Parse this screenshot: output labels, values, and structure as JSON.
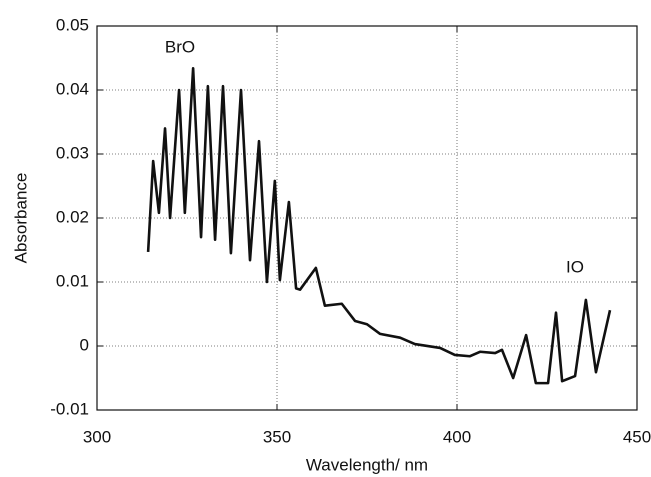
{
  "chart_data": {
    "type": "line",
    "x_label": "Wavelength/ nm",
    "y_label": "Absorbance",
    "annotations": [
      "BrO",
      "IO"
    ],
    "xlim": [
      300,
      450
    ],
    "xticks": [
      300,
      350,
      400,
      450
    ],
    "ylim": [
      -0.01,
      0.05
    ],
    "yticks": [
      -0.01,
      0,
      0.01,
      0.02,
      0.03,
      0.04,
      0.05
    ],
    "grid": true,
    "series": [
      {
        "name": "Absorbance",
        "color": "#111111",
        "x": [
          314.2,
          315.6,
          317.2,
          318.9,
          320.3,
          322.8,
          324.4,
          326.7,
          328.9,
          330.8,
          332.8,
          335.0,
          337.2,
          340.0,
          342.5,
          345.0,
          347.2,
          349.4,
          350.8,
          353.3,
          355.3,
          356.4,
          360.8,
          363.3,
          368.0,
          371.7,
          375.0,
          378.6,
          384.2,
          388.3,
          395.3,
          399.4,
          403.6,
          406.4,
          410.6,
          412.5,
          415.6,
          419.2,
          421.9,
          425.3,
          427.5,
          429.2,
          432.8,
          435.8,
          438.6,
          442.5
        ],
        "values": [
          0.0147,
          0.0289,
          0.0208,
          0.034,
          0.02,
          0.04,
          0.0208,
          0.0434,
          0.017,
          0.0406,
          0.0166,
          0.0406,
          0.0145,
          0.04,
          0.0134,
          0.032,
          0.01,
          0.0258,
          0.0103,
          0.0225,
          0.009,
          0.0088,
          0.0122,
          0.0063,
          0.0066,
          0.0039,
          0.0034,
          0.0019,
          0.0013,
          0.0003,
          -0.0003,
          -0.0014,
          -0.0016,
          -0.0009,
          -0.0011,
          -0.0006,
          -0.005,
          0.0017,
          -0.0058,
          -0.0058,
          0.0052,
          -0.0055,
          -0.0047,
          0.0072,
          -0.0041,
          0.0056
        ]
      }
    ]
  }
}
